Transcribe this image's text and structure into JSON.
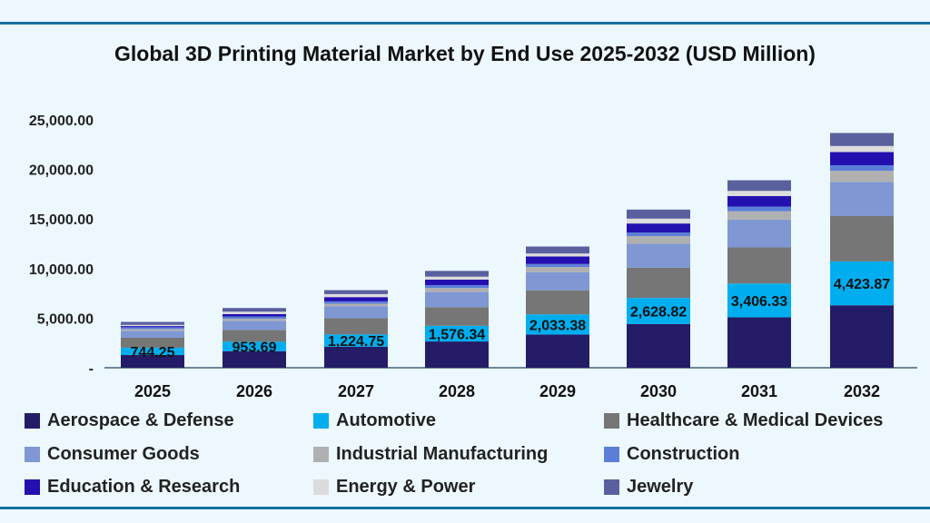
{
  "chart_data": {
    "type": "bar",
    "stacked": true,
    "title": "Global 3D Printing Material Market by End Use 2025-2032 (USD Million)",
    "xlabel": "",
    "ylabel": "",
    "categories": [
      "2025",
      "2026",
      "2027",
      "2028",
      "2029",
      "2030",
      "2031",
      "2032"
    ],
    "ylim": [
      0,
      25000
    ],
    "yticks": [
      0,
      5000,
      10000,
      15000,
      20000,
      25000
    ],
    "ytick_labels": [
      "-",
      "5,000.00",
      "10,000.00",
      "15,000.00",
      "20,000.00",
      "25,000.00"
    ],
    "grid": false,
    "legend_placement": "bottom",
    "series": [
      {
        "name": "Aerospace & Defense",
        "color": "#241c66",
        "values": [
          1280,
          1670,
          2130,
          2650,
          3350,
          4410,
          5080,
          6300
        ]
      },
      {
        "name": "Automotive",
        "color": "#00aeef",
        "values": [
          744.25,
          953.69,
          1224.75,
          1576.34,
          2033.38,
          2628.82,
          3406.33,
          4423.87
        ],
        "data_labels": [
          "744.25",
          "953.69",
          "1,224.75",
          "1,576.34",
          "2,033.38",
          "2,628.82",
          "3,406.33",
          "4,423.87"
        ]
      },
      {
        "name": "Healthcare & Medical Devices",
        "color": "#767676",
        "values": [
          1000,
          1190,
          1640,
          1890,
          2430,
          3040,
          3650,
          4570
        ]
      },
      {
        "name": "Consumer Goods",
        "color": "#7f97d3",
        "values": [
          700,
          910,
          1220,
          1520,
          1830,
          2430,
          2800,
          3440
        ]
      },
      {
        "name": "Industrial Manufacturing",
        "color": "#b0b0b0",
        "values": [
          180,
          210,
          240,
          400,
          520,
          760,
          850,
          1130
        ]
      },
      {
        "name": "Construction",
        "color": "#5b7fd9",
        "values": [
          180,
          240,
          240,
          300,
          300,
          370,
          460,
          550
        ]
      },
      {
        "name": "Education & Research",
        "color": "#2410b0",
        "values": [
          120,
          240,
          430,
          550,
          760,
          910,
          1070,
          1340
        ]
      },
      {
        "name": "Energy & Power",
        "color": "#dcdcdc",
        "values": [
          120,
          240,
          300,
          300,
          300,
          490,
          520,
          610
        ]
      },
      {
        "name": "Jewelry",
        "color": "#5a5f9e",
        "values": [
          300,
          370,
          400,
          580,
          700,
          910,
          1070,
          1310
        ]
      }
    ]
  }
}
